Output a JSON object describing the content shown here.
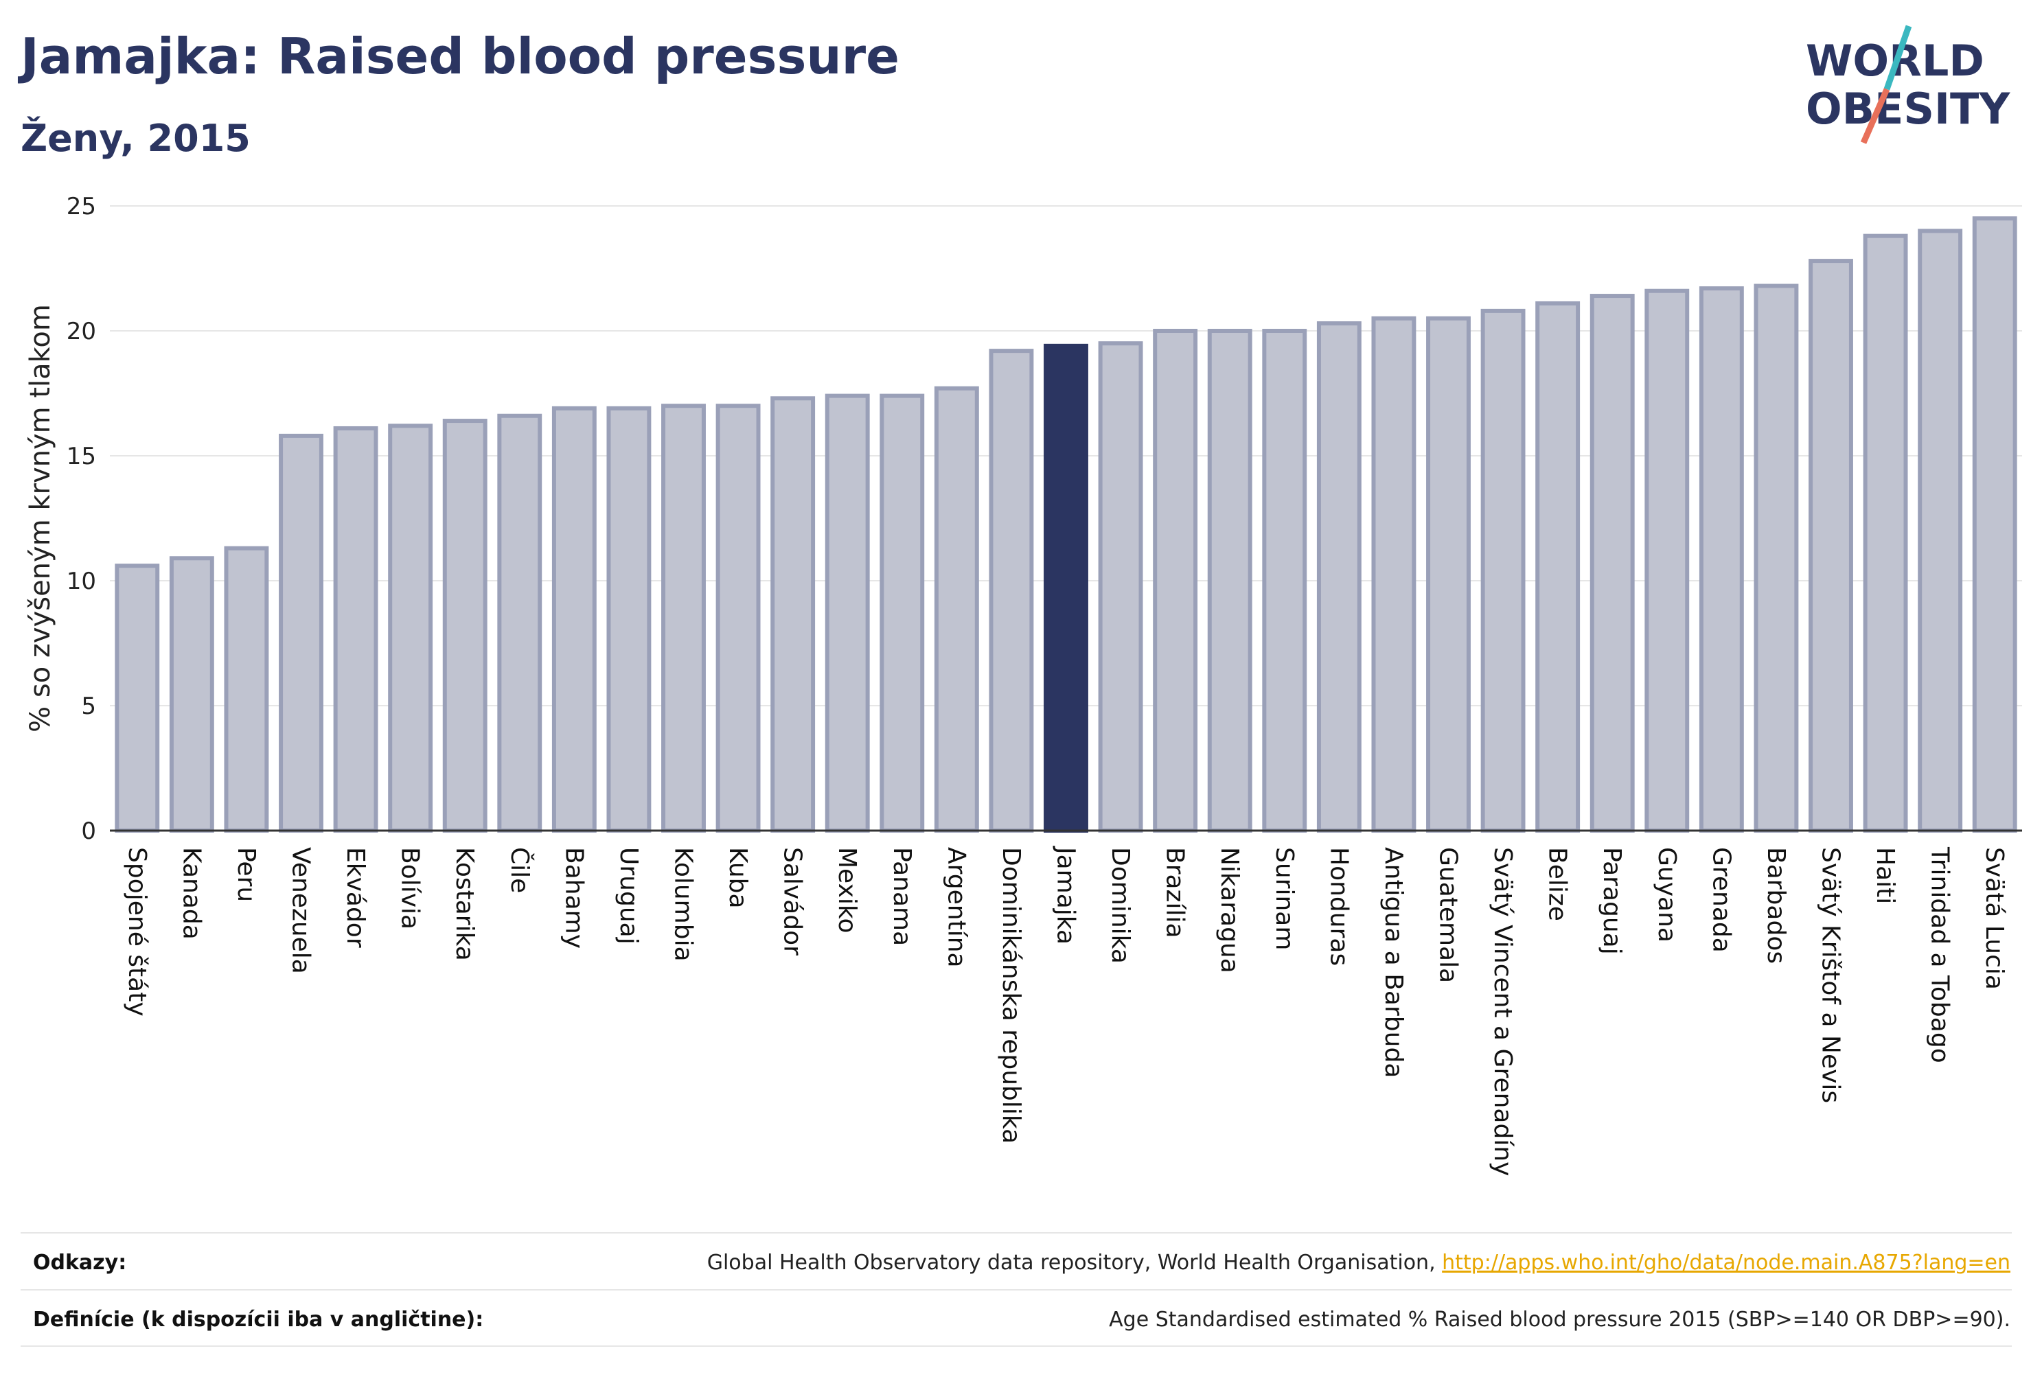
{
  "header": {
    "title": "Jamajka: Raised blood pressure",
    "subtitle": "Ženy, 2015"
  },
  "logo": {
    "line1": "WORLD",
    "line2": "OBESITY",
    "colors": {
      "text": "#2b3561",
      "slash_teal": "#3bb8c0",
      "slash_red": "#e8705a"
    }
  },
  "colors": {
    "bar_fill": "#c0c3d0",
    "bar_stroke": "#9aa0b8",
    "highlight_fill": "#2b3561",
    "grid": "#e6e6e6",
    "axis": "#333333"
  },
  "chart_data": {
    "type": "bar",
    "ylabel": "% so zvýšeným krvným tlakom",
    "ylim": [
      0,
      25
    ],
    "yticks": [
      0,
      5,
      10,
      15,
      20,
      25
    ],
    "grid": true,
    "highlight": "Jamajka",
    "categories": [
      "Spojené štáty",
      "Kanada",
      "Peru",
      "Venezuela",
      "Ekvádor",
      "Bolívia",
      "Kostarika",
      "Čile",
      "Bahamy",
      "Uruguaj",
      "Kolumbia",
      "Kuba",
      "Salvádor",
      "Mexiko",
      "Panama",
      "Argentína",
      "Dominikánska republika",
      "Jamajka",
      "Dominika",
      "Brazília",
      "Nikaragua",
      "Surinam",
      "Honduras",
      "Antigua a Barbuda",
      "Guatemala",
      "Svätý Vincent a Grenadíny",
      "Belize",
      "Paraguaj",
      "Guyana",
      "Grenada",
      "Barbados",
      "Svätý Krištof a Nevis",
      "Haiti",
      "Trinidad a Tobago",
      "Svätá Lucia"
    ],
    "values": [
      10.6,
      10.9,
      11.3,
      15.8,
      16.1,
      16.2,
      16.4,
      16.6,
      16.9,
      16.9,
      17.0,
      17.0,
      17.3,
      17.4,
      17.4,
      17.7,
      19.2,
      19.4,
      19.5,
      20.0,
      20.0,
      20.0,
      20.3,
      20.5,
      20.5,
      20.8,
      21.1,
      21.4,
      21.6,
      21.7,
      21.8,
      22.8,
      23.8,
      24.0,
      24.5
    ]
  },
  "footer": {
    "references_label": "Odkazy:",
    "references_text": "Global Health Observatory data repository, World Health Organisation, ",
    "references_link": "http://apps.who.int/gho/data/node.main.A875?lang=en",
    "definitions_label": "Definície (k dispozícii iba v angličtine):",
    "definitions_text": "Age Standardised estimated % Raised blood pressure 2015 (SBP>=140 OR DBP>=90)."
  }
}
